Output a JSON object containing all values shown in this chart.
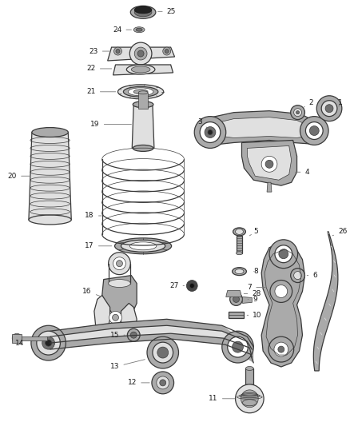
{
  "bg_color": "#ffffff",
  "line_color": "#3a3a3a",
  "label_color": "#1a1a1a",
  "fig_width": 4.38,
  "fig_height": 5.33,
  "dpi": 100,
  "label_fs": 6.5,
  "lw_main": 0.9,
  "lw_thin": 0.5,
  "gray_fill": "#c8c8c8",
  "gray_mid": "#aaaaaa",
  "gray_light": "#e0e0e0",
  "gray_dark": "#707070",
  "white": "#ffffff"
}
